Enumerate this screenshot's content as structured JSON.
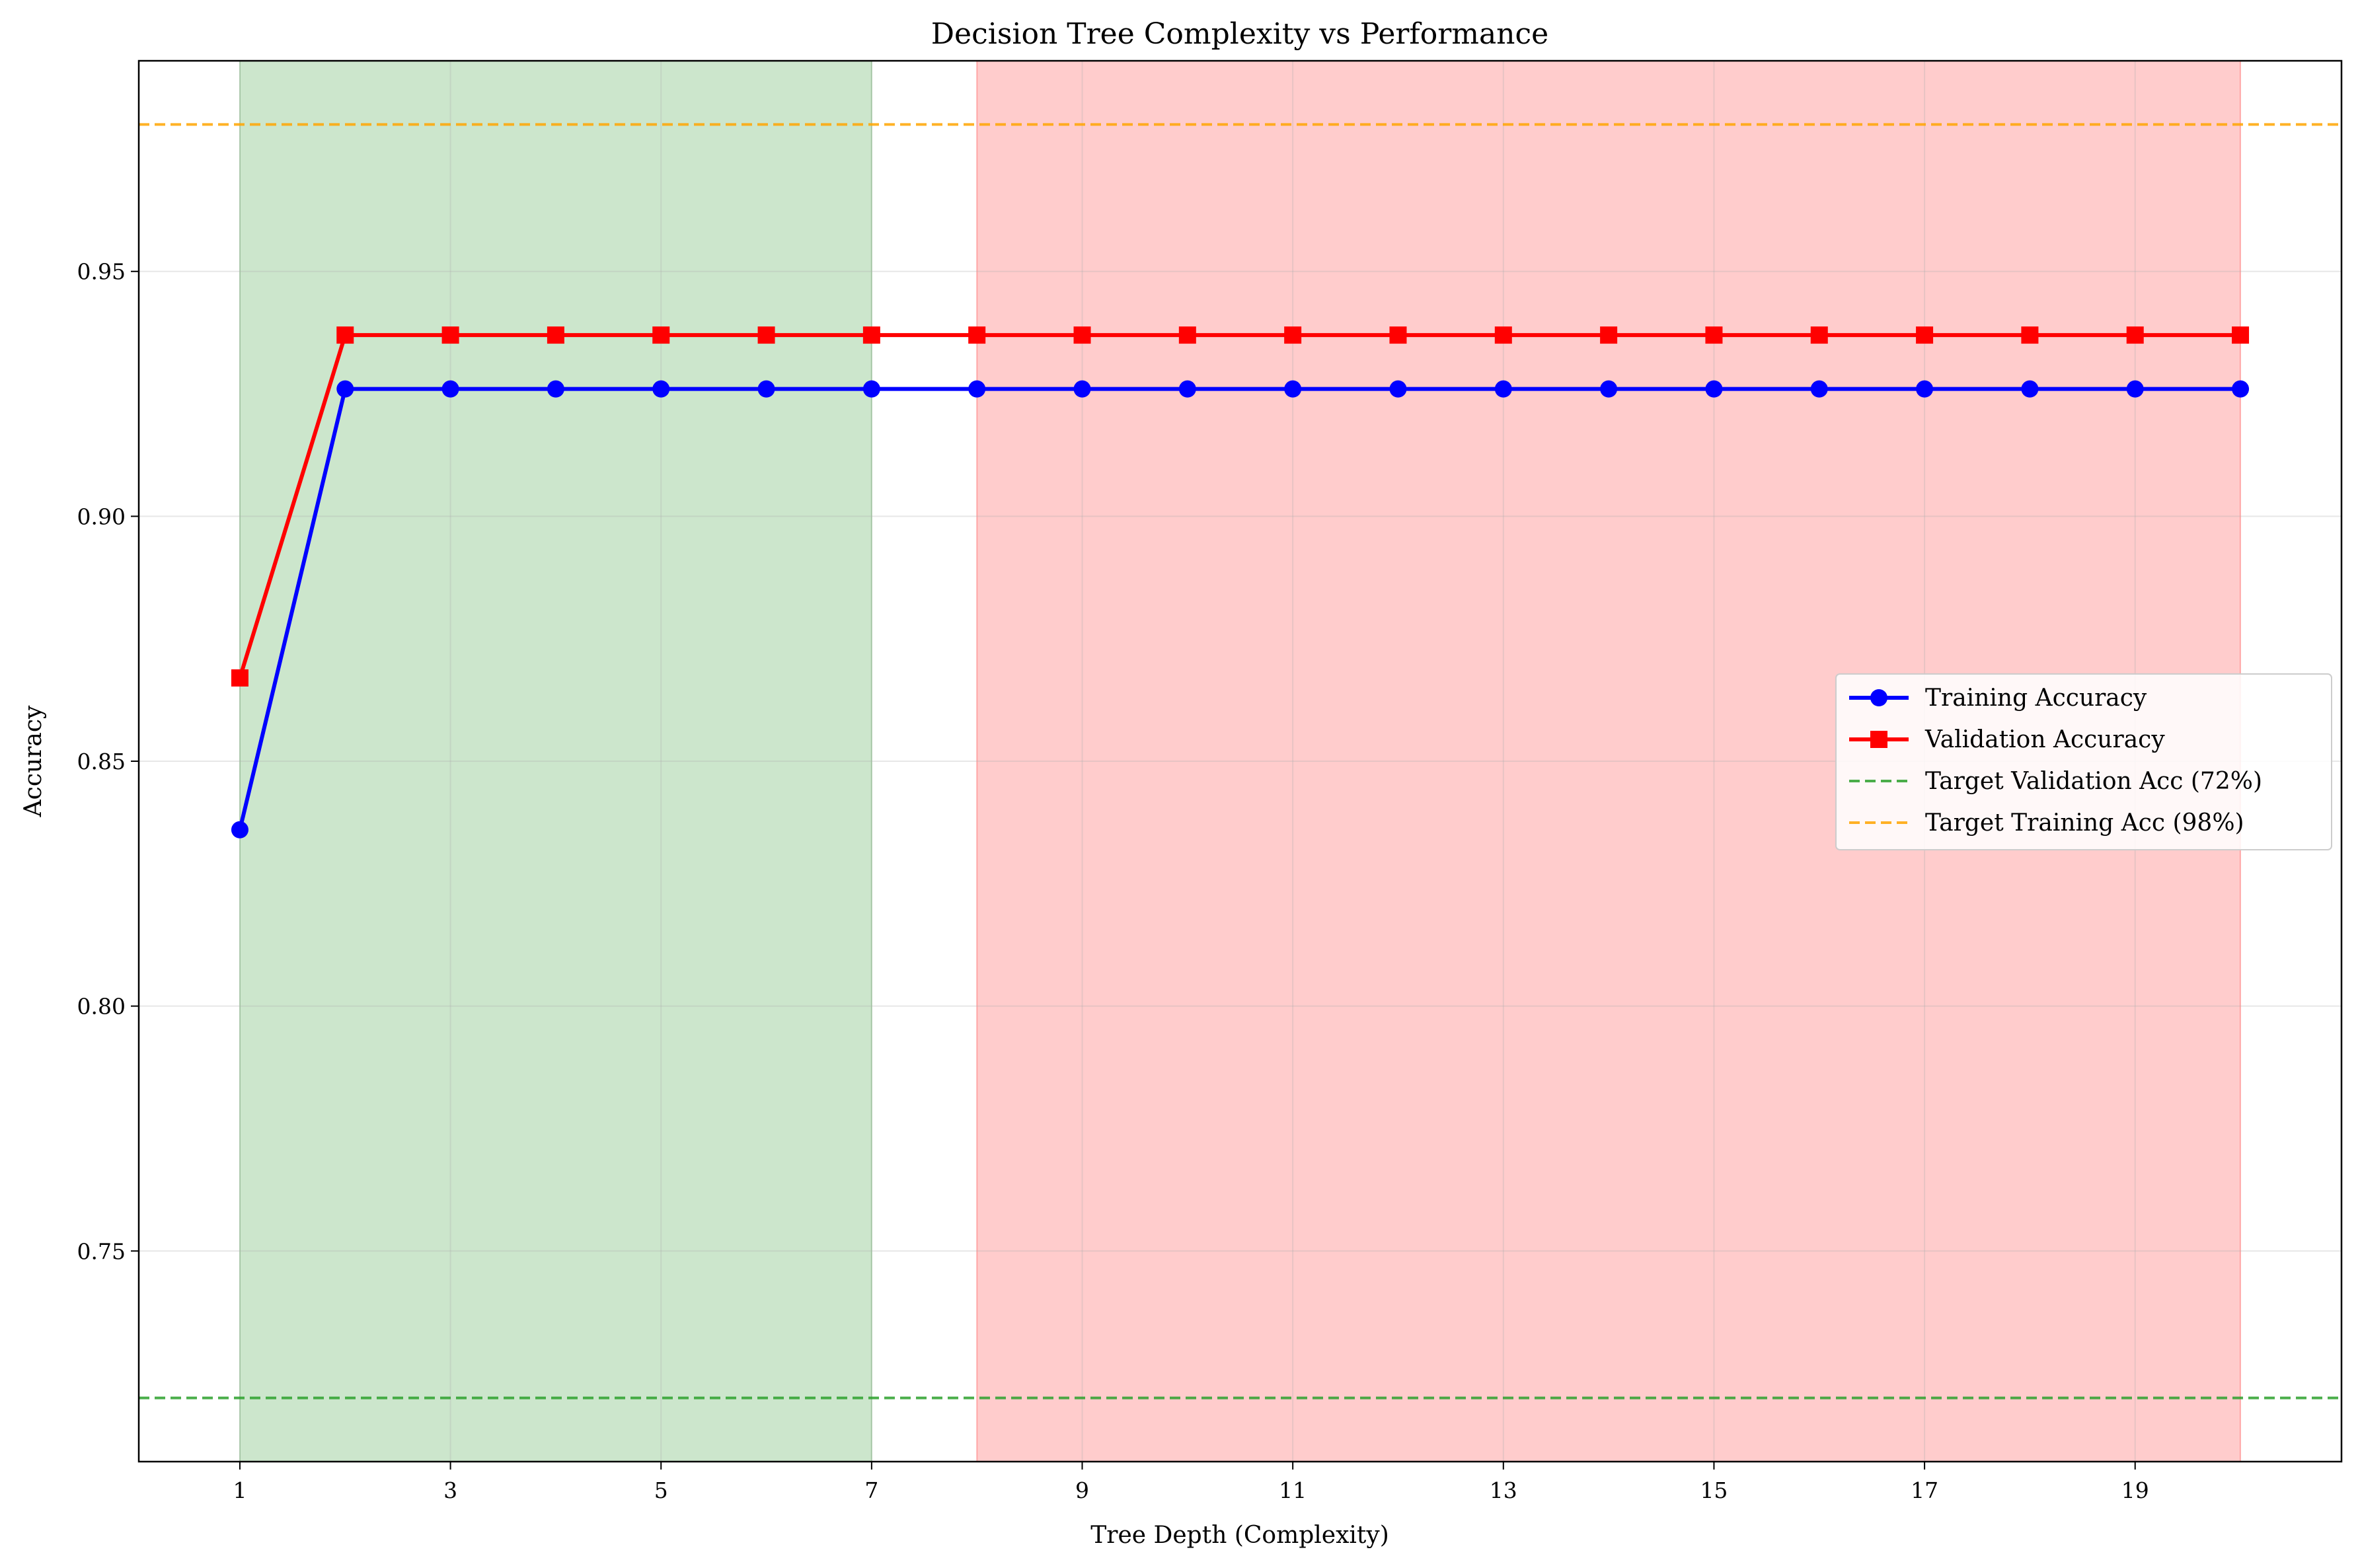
{
  "chart_data": {
    "type": "line",
    "title": "Decision Tree Complexity vs Performance",
    "xlabel": "Tree Depth (Complexity)",
    "ylabel": "Accuracy",
    "xlim": [
      0.04,
      20.96
    ],
    "ylim": [
      0.707,
      0.993
    ],
    "x_ticks": [
      1,
      3,
      5,
      7,
      9,
      11,
      13,
      15,
      17,
      19
    ],
    "y_ticks": [
      0.75,
      0.8,
      0.85,
      0.9,
      0.95
    ],
    "y_tick_labels": [
      "0.75",
      "0.80",
      "0.85",
      "0.90",
      "0.95"
    ],
    "grid": true,
    "legend_position": "center-right",
    "x": [
      1,
      2,
      3,
      4,
      5,
      6,
      7,
      8,
      9,
      10,
      11,
      12,
      13,
      14,
      15,
      16,
      17,
      18,
      19,
      20
    ],
    "series": [
      {
        "name": "Training Accuracy",
        "color": "#0000ff",
        "marker": "circle",
        "values": [
          0.836,
          0.926,
          0.926,
          0.926,
          0.926,
          0.926,
          0.926,
          0.926,
          0.926,
          0.926,
          0.926,
          0.926,
          0.926,
          0.926,
          0.926,
          0.926,
          0.926,
          0.926,
          0.926,
          0.926
        ]
      },
      {
        "name": "Validation Accuracy",
        "color": "#ff0000",
        "marker": "square",
        "values": [
          0.867,
          0.937,
          0.937,
          0.937,
          0.937,
          0.937,
          0.937,
          0.937,
          0.937,
          0.937,
          0.937,
          0.937,
          0.937,
          0.937,
          0.937,
          0.937,
          0.937,
          0.937,
          0.937,
          0.937
        ]
      }
    ],
    "reference_lines": [
      {
        "name": "Target Validation Acc (72%)",
        "y": 0.72,
        "color": "#2ca02c",
        "style": "dashed"
      },
      {
        "name": "Target Training Acc (98%)",
        "y": 0.98,
        "color": "#ffa500",
        "style": "dashed"
      }
    ],
    "shaded_regions": [
      {
        "x_start": 1,
        "x_end": 7,
        "color": "#008000",
        "opacity": 0.2
      },
      {
        "x_start": 8,
        "x_end": 20,
        "color": "#ff0000",
        "opacity": 0.2
      }
    ]
  }
}
